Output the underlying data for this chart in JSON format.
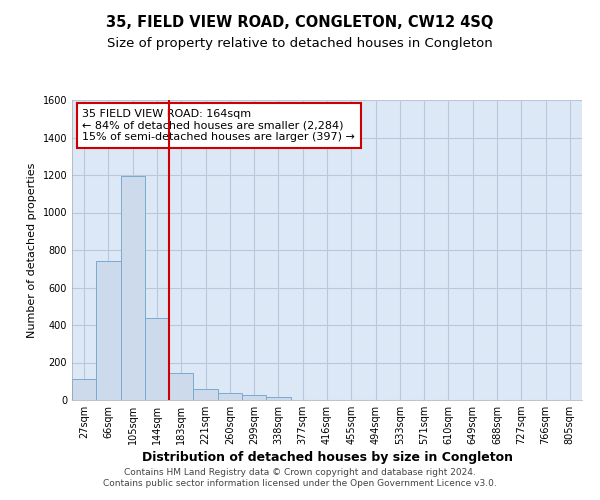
{
  "title": "35, FIELD VIEW ROAD, CONGLETON, CW12 4SQ",
  "subtitle": "Size of property relative to detached houses in Congleton",
  "xlabel": "Distribution of detached houses by size in Congleton",
  "ylabel": "Number of detached properties",
  "footer_line1": "Contains HM Land Registry data © Crown copyright and database right 2024.",
  "footer_line2": "Contains public sector information licensed under the Open Government Licence v3.0.",
  "categories": [
    "27sqm",
    "66sqm",
    "105sqm",
    "144sqm",
    "183sqm",
    "221sqm",
    "260sqm",
    "299sqm",
    "338sqm",
    "377sqm",
    "416sqm",
    "455sqm",
    "494sqm",
    "533sqm",
    "571sqm",
    "610sqm",
    "649sqm",
    "688sqm",
    "727sqm",
    "766sqm",
    "805sqm"
  ],
  "values": [
    110,
    740,
    1195,
    440,
    145,
    60,
    35,
    25,
    15,
    0,
    0,
    0,
    0,
    0,
    0,
    0,
    0,
    0,
    0,
    0,
    0
  ],
  "bar_color": "#ccdaeb",
  "bar_edge_color": "#7aaad0",
  "bar_linewidth": 0.7,
  "grid_color": "#b8c8dc",
  "bg_color": "#dce8f5",
  "vline_color": "#cc0000",
  "annotation_title": "35 FIELD VIEW ROAD: 164sqm",
  "annotation_line1": "← 84% of detached houses are smaller (2,284)",
  "annotation_line2": "15% of semi-detached houses are larger (397) →",
  "annotation_box_color": "#ffffff",
  "annotation_box_edge": "#cc0000",
  "ylim": [
    0,
    1600
  ],
  "yticks": [
    0,
    200,
    400,
    600,
    800,
    1000,
    1200,
    1400,
    1600
  ],
  "title_fontsize": 10.5,
  "subtitle_fontsize": 9.5,
  "xlabel_fontsize": 9,
  "ylabel_fontsize": 8,
  "tick_fontsize": 7,
  "annotation_fontsize": 8,
  "footer_fontsize": 6.5
}
